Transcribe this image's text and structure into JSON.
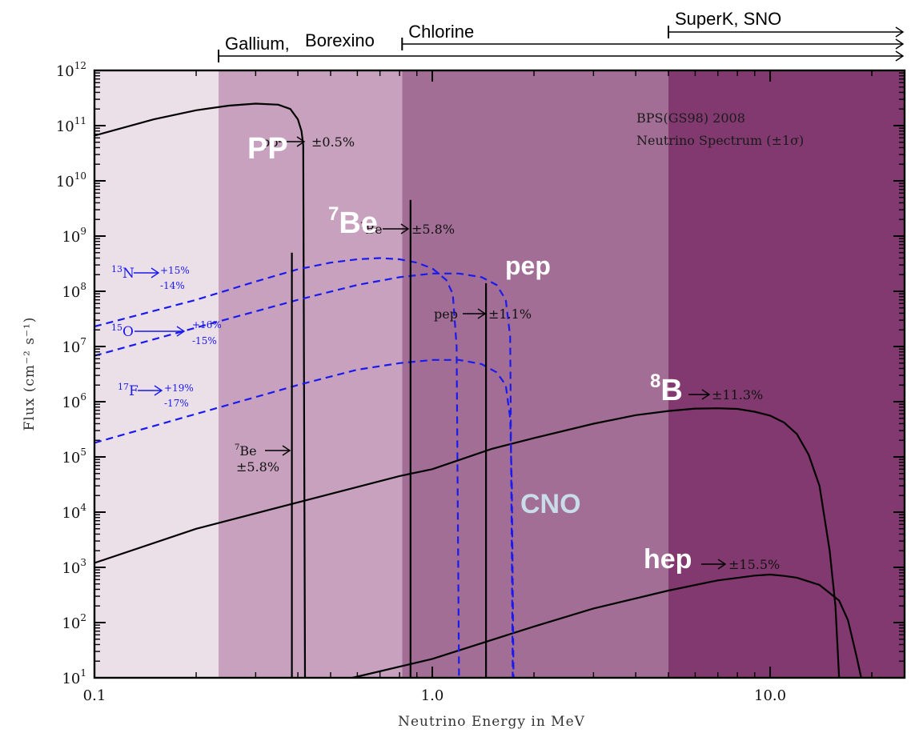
{
  "chart_data": {
    "type": "line",
    "title": "BPS(GS98) 2008",
    "subtitle": "Neutrino Spectrum (±1σ)",
    "xlabel": "Neutrino Energy in MeV",
    "ylabel": "Flux (cm⁻² s⁻¹)",
    "x_scale": "log",
    "y_scale": "log",
    "xlim": [
      0.1,
      25
    ],
    "ylim": [
      10,
      1000000000000.0
    ],
    "x_ticks": [
      {
        "value": 0.1,
        "label": "0.1"
      },
      {
        "value": 1.0,
        "label": "1.0"
      },
      {
        "value": 10.0,
        "label": "10.0"
      }
    ],
    "y_ticks": [
      {
        "exp": 1,
        "base": "10",
        "sup": "1"
      },
      {
        "exp": 2,
        "base": "10",
        "sup": "2"
      },
      {
        "exp": 3,
        "base": "10",
        "sup": "3"
      },
      {
        "exp": 4,
        "base": "10",
        "sup": "4"
      },
      {
        "exp": 5,
        "base": "10",
        "sup": "5"
      },
      {
        "exp": 6,
        "base": "10",
        "sup": "6"
      },
      {
        "exp": 7,
        "base": "10",
        "sup": "7"
      },
      {
        "exp": 8,
        "base": "10",
        "sup": "8"
      },
      {
        "exp": 9,
        "base": "10",
        "sup": "9"
      },
      {
        "exp": 10,
        "base": "10",
        "sup": "10"
      },
      {
        "exp": 11,
        "base": "10",
        "sup": "11"
      },
      {
        "exp": 12,
        "base": "10",
        "sup": "12"
      }
    ],
    "regions": [
      {
        "from": 0.1,
        "to": 0.233,
        "color": "#ebdfe8"
      },
      {
        "from": 0.233,
        "to": 0.814,
        "color": "#c7a1bd"
      },
      {
        "from": 0.814,
        "to": 5.0,
        "color": "#a26e96"
      },
      {
        "from": 5.0,
        "to": 25,
        "color": "#82396f"
      }
    ],
    "thresholds": [
      {
        "label": "Gallium",
        "from": 0.233
      },
      {
        "label": "Borexino",
        "from": 0.233
      },
      {
        "label": "Chlorine",
        "from": 0.814
      },
      {
        "label": "SuperK, SNO",
        "from": 5.0
      }
    ],
    "series": [
      {
        "name": "PP",
        "style": "solid",
        "color": "#000000",
        "points": [
          [
            0.1,
            66000000000.0
          ],
          [
            0.15,
            130000000000.0
          ],
          [
            0.2,
            190000000000.0
          ],
          [
            0.25,
            230000000000.0
          ],
          [
            0.3,
            250000000000.0
          ],
          [
            0.35,
            240000000000.0
          ],
          [
            0.38,
            200000000000.0
          ],
          [
            0.4,
            130000000000.0
          ],
          [
            0.41,
            80000000000.0
          ],
          [
            0.415,
            45000000000.0
          ],
          [
            0.42,
            10
          ]
        ]
      },
      {
        "name": "8B",
        "style": "solid",
        "color": "#000000",
        "points": [
          [
            0.1,
            1200.0
          ],
          [
            0.2,
            5000.0
          ],
          [
            0.4,
            15000.0
          ],
          [
            0.8,
            45000.0
          ],
          [
            1.0,
            60000.0
          ],
          [
            1.5,
            140000.0
          ],
          [
            2.0,
            220000.0
          ],
          [
            3.0,
            400000.0
          ],
          [
            4.0,
            570000.0
          ],
          [
            5.0,
            680000.0
          ],
          [
            6.0,
            750000.0
          ],
          [
            7.0,
            760000.0
          ],
          [
            8.0,
            740000.0
          ],
          [
            9.0,
            660000.0
          ],
          [
            10.0,
            560000.0
          ],
          [
            11.0,
            420000.0
          ],
          [
            12.0,
            260000.0
          ],
          [
            13.0,
            110000.0
          ],
          [
            14.0,
            30000.0
          ],
          [
            15.0,
            2000.0
          ],
          [
            15.6,
            200
          ],
          [
            16.0,
            10
          ]
        ]
      },
      {
        "name": "hep",
        "style": "solid",
        "color": "#000000",
        "points": [
          [
            0.58,
            10
          ],
          [
            1.0,
            22
          ],
          [
            2.0,
            85
          ],
          [
            3.0,
            180
          ],
          [
            5.0,
            380
          ],
          [
            7.0,
            580
          ],
          [
            9.0,
            710
          ],
          [
            10.0,
            740
          ],
          [
            11.0,
            700
          ],
          [
            12.0,
            650
          ],
          [
            14.0,
            480
          ],
          [
            16.0,
            250
          ],
          [
            17.0,
            110
          ],
          [
            18.0,
            25
          ],
          [
            18.6,
            10
          ]
        ]
      },
      {
        "name": "13N",
        "style": "dashed",
        "color": "#1a1aee",
        "points": [
          [
            0.1,
            23000000.0
          ],
          [
            0.2,
            70000000.0
          ],
          [
            0.3,
            150000000.0
          ],
          [
            0.4,
            250000000.0
          ],
          [
            0.5,
            330000000.0
          ],
          [
            0.6,
            380000000.0
          ],
          [
            0.7,
            400000000.0
          ],
          [
            0.8,
            380000000.0
          ],
          [
            0.9,
            330000000.0
          ],
          [
            1.0,
            260000000.0
          ],
          [
            1.1,
            160000000.0
          ],
          [
            1.15,
            90000000.0
          ],
          [
            1.18,
            10000000.0
          ],
          [
            1.2,
            10
          ]
        ]
      },
      {
        "name": "15O",
        "style": "dashed",
        "color": "#1a1aee",
        "points": [
          [
            0.1,
            6800000.0
          ],
          [
            0.2,
            22000000.0
          ],
          [
            0.4,
            70000000.0
          ],
          [
            0.6,
            130000000.0
          ],
          [
            0.8,
            180000000.0
          ],
          [
            1.0,
            210000000.0
          ],
          [
            1.2,
            210000000.0
          ],
          [
            1.4,
            180000000.0
          ],
          [
            1.55,
            130000000.0
          ],
          [
            1.65,
            70000000.0
          ],
          [
            1.7,
            15000000.0
          ],
          [
            1.73,
            10
          ]
        ]
      },
      {
        "name": "17F",
        "style": "dashed",
        "color": "#1a1aee",
        "points": [
          [
            0.1,
            180000.0
          ],
          [
            0.2,
            600000.0
          ],
          [
            0.4,
            2000000.0
          ],
          [
            0.6,
            3800000.0
          ],
          [
            0.8,
            5000000.0
          ],
          [
            1.0,
            5700000.0
          ],
          [
            1.2,
            5700000.0
          ],
          [
            1.4,
            4800000.0
          ],
          [
            1.55,
            3400000.0
          ],
          [
            1.65,
            2000000.0
          ],
          [
            1.7,
            500000.0
          ],
          [
            1.72,
            30000.0
          ],
          [
            1.74,
            10
          ]
        ]
      }
    ],
    "lines": [
      {
        "name": "7Be 384 keV",
        "x": 0.384,
        "y": 500000000.0
      },
      {
        "name": "7Be 862 keV",
        "x": 0.862,
        "y": 4500000000.0
      },
      {
        "name": "pep",
        "x": 1.442,
        "y": 140000000.0
      }
    ],
    "annotations": [
      {
        "id": "pp",
        "big": "PP",
        "small": "pp",
        "unc": "±0.5%",
        "x": 0.32,
        "y": 43000000000.0
      },
      {
        "id": "be7",
        "big": "Be",
        "big_sup": "7",
        "small": "Be",
        "small_sup": "7",
        "unc": "±5.8%",
        "x": 0.7,
        "y": 1200000000.0
      },
      {
        "id": "be7low",
        "small": "Be",
        "small_sup": "7",
        "unc": "±5.8%",
        "x": 0.3,
        "y": 130000.0
      },
      {
        "id": "pep",
        "big": "pep",
        "small": "pep",
        "unc": "±1.1%",
        "x": 1.15,
        "y": 35000000.0
      },
      {
        "id": "b8",
        "big": "B",
        "big_sup": "8",
        "unc": "±11.3%",
        "x": 6.5,
        "y": 1100000.0
      },
      {
        "id": "hep",
        "big": "hep",
        "unc": "±15.5%",
        "x": 8.0,
        "y": 1000
      },
      {
        "id": "cno",
        "big": "CNO",
        "x": 1.9,
        "y": 8000.0
      }
    ],
    "cno_labels": [
      {
        "sup": "13",
        "name": "N",
        "plus": "+15%",
        "minus": "-14%"
      },
      {
        "sup": "15",
        "name": "O",
        "plus": "+16%",
        "minus": "-15%"
      },
      {
        "sup": "17",
        "name": "F",
        "plus": "+19%",
        "minus": "-17%"
      }
    ]
  }
}
